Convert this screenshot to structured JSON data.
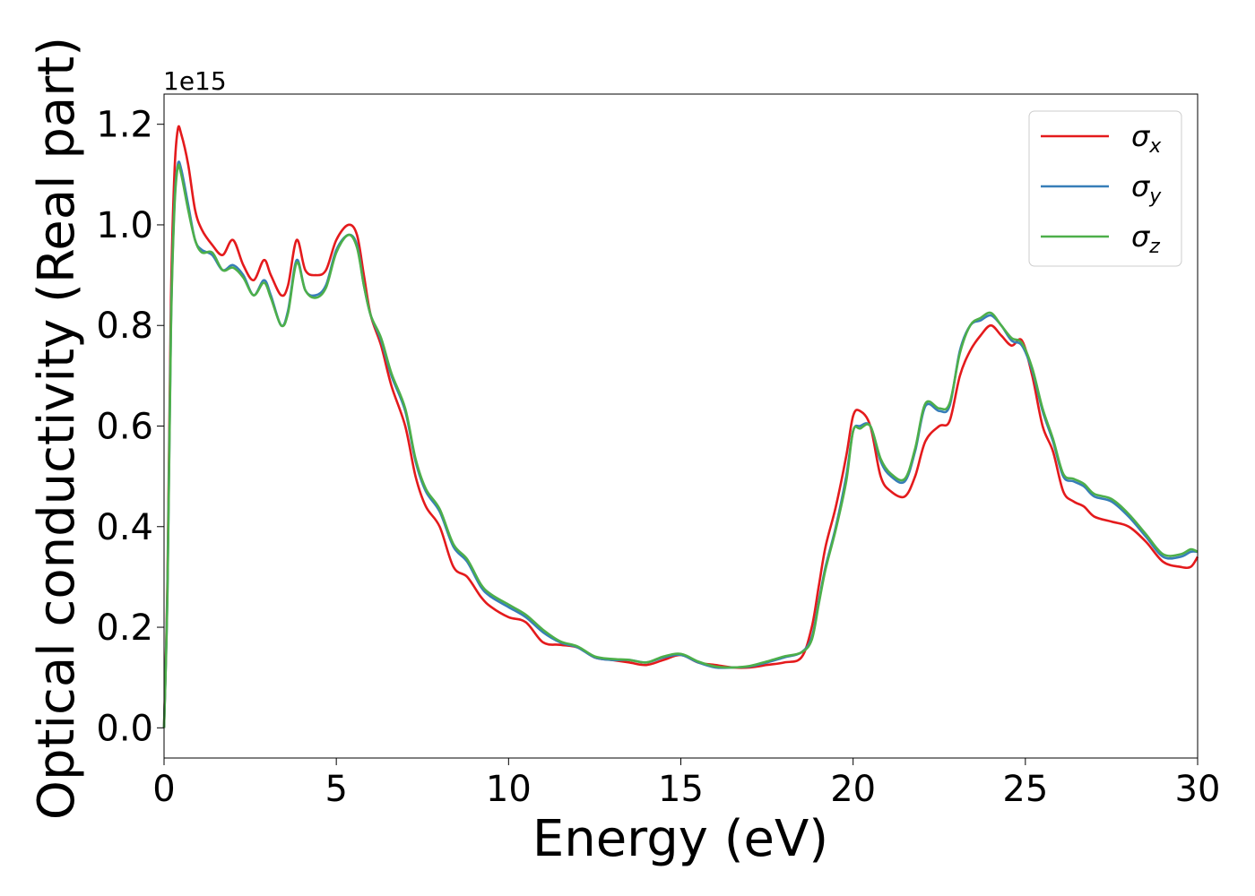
{
  "chart_data": {
    "type": "line",
    "title": "",
    "xlabel": "Energy (eV)",
    "ylabel": "Optical conductivity (Real part)",
    "offset_label": "1e15",
    "xlim": [
      0,
      30
    ],
    "ylim": [
      -0.06,
      1.26
    ],
    "x_ticks": [
      0,
      5,
      10,
      15,
      20,
      25,
      30
    ],
    "x_tick_labels": [
      "0",
      "5",
      "10",
      "15",
      "20",
      "25",
      "30"
    ],
    "y_ticks": [
      0.0,
      0.2,
      0.4,
      0.6,
      0.8,
      1.0,
      1.2
    ],
    "y_tick_labels": [
      "0.0",
      "0.2",
      "0.4",
      "0.6",
      "0.8",
      "1.0",
      "1.2"
    ],
    "grid": false,
    "legend_position": "top-right",
    "series": [
      {
        "name": "σ_x",
        "legend_base": "σ",
        "legend_sub": "x",
        "color": "#e41a1c",
        "x": [
          0,
          0.1,
          0.2,
          0.3,
          0.4,
          0.5,
          0.7,
          0.9,
          1.1,
          1.4,
          1.7,
          2.0,
          2.3,
          2.6,
          2.9,
          3.1,
          3.4,
          3.6,
          3.85,
          4.1,
          4.4,
          4.7,
          5.0,
          5.35,
          5.6,
          5.8,
          6.0,
          6.3,
          6.6,
          7.0,
          7.3,
          7.6,
          8.0,
          8.4,
          8.8,
          9.2,
          9.5,
          10.0,
          10.5,
          11.0,
          11.5,
          12.0,
          12.5,
          13.0,
          13.5,
          14.0,
          14.5,
          15.0,
          15.5,
          16.0,
          16.5,
          17.0,
          17.5,
          18.0,
          18.5,
          18.8,
          19.0,
          19.2,
          19.5,
          19.8,
          20.0,
          20.2,
          20.5,
          20.8,
          21.1,
          21.5,
          21.8,
          22.1,
          22.5,
          22.8,
          23.1,
          23.4,
          23.7,
          24.0,
          24.3,
          24.6,
          24.9,
          25.2,
          25.5,
          25.8,
          26.1,
          26.4,
          26.7,
          27.0,
          27.5,
          28.0,
          28.5,
          29.0,
          29.5,
          29.8,
          30.0
        ],
        "y": [
          0.0,
          0.3,
          0.85,
          1.1,
          1.19,
          1.18,
          1.12,
          1.03,
          0.99,
          0.96,
          0.94,
          0.97,
          0.92,
          0.89,
          0.93,
          0.9,
          0.86,
          0.88,
          0.97,
          0.91,
          0.9,
          0.91,
          0.97,
          1.0,
          0.98,
          0.9,
          0.82,
          0.76,
          0.68,
          0.6,
          0.5,
          0.44,
          0.4,
          0.32,
          0.3,
          0.26,
          0.24,
          0.22,
          0.21,
          0.17,
          0.165,
          0.16,
          0.14,
          0.135,
          0.13,
          0.125,
          0.135,
          0.145,
          0.13,
          0.125,
          0.12,
          0.12,
          0.125,
          0.13,
          0.14,
          0.2,
          0.28,
          0.36,
          0.44,
          0.54,
          0.62,
          0.63,
          0.6,
          0.5,
          0.47,
          0.46,
          0.5,
          0.57,
          0.6,
          0.61,
          0.7,
          0.75,
          0.78,
          0.8,
          0.78,
          0.76,
          0.77,
          0.7,
          0.6,
          0.55,
          0.47,
          0.45,
          0.44,
          0.42,
          0.41,
          0.4,
          0.37,
          0.33,
          0.32,
          0.32,
          0.34
        ]
      },
      {
        "name": "σ_y",
        "legend_base": "σ",
        "legend_sub": "y",
        "color": "#377eb8",
        "x": [
          0,
          0.1,
          0.2,
          0.3,
          0.4,
          0.5,
          0.7,
          0.9,
          1.1,
          1.4,
          1.7,
          2.0,
          2.3,
          2.6,
          2.9,
          3.1,
          3.4,
          3.6,
          3.85,
          4.1,
          4.4,
          4.7,
          5.0,
          5.35,
          5.6,
          5.8,
          6.0,
          6.3,
          6.6,
          7.0,
          7.3,
          7.6,
          8.0,
          8.4,
          8.8,
          9.2,
          9.5,
          10.0,
          10.5,
          11.0,
          11.5,
          12.0,
          12.5,
          13.0,
          13.5,
          14.0,
          14.5,
          15.0,
          15.5,
          16.0,
          16.5,
          17.0,
          17.5,
          18.0,
          18.5,
          18.8,
          19.0,
          19.2,
          19.5,
          19.8,
          20.0,
          20.2,
          20.5,
          20.8,
          21.1,
          21.5,
          21.8,
          22.1,
          22.5,
          22.8,
          23.1,
          23.4,
          23.7,
          24.0,
          24.3,
          24.6,
          24.9,
          25.2,
          25.5,
          25.8,
          26.1,
          26.4,
          26.7,
          27.0,
          27.5,
          28.0,
          28.5,
          29.0,
          29.5,
          29.8,
          30.0
        ],
        "y": [
          0.0,
          0.28,
          0.8,
          1.04,
          1.12,
          1.11,
          1.04,
          0.97,
          0.95,
          0.94,
          0.91,
          0.92,
          0.9,
          0.86,
          0.89,
          0.86,
          0.8,
          0.83,
          0.93,
          0.87,
          0.86,
          0.88,
          0.95,
          0.98,
          0.96,
          0.88,
          0.82,
          0.77,
          0.7,
          0.63,
          0.53,
          0.47,
          0.43,
          0.36,
          0.33,
          0.28,
          0.26,
          0.24,
          0.22,
          0.19,
          0.17,
          0.16,
          0.14,
          0.135,
          0.135,
          0.13,
          0.14,
          0.145,
          0.13,
          0.12,
          0.12,
          0.122,
          0.13,
          0.14,
          0.15,
          0.18,
          0.25,
          0.32,
          0.4,
          0.5,
          0.59,
          0.6,
          0.6,
          0.53,
          0.5,
          0.49,
          0.55,
          0.64,
          0.63,
          0.64,
          0.75,
          0.8,
          0.81,
          0.82,
          0.8,
          0.77,
          0.76,
          0.71,
          0.63,
          0.57,
          0.5,
          0.49,
          0.48,
          0.46,
          0.45,
          0.42,
          0.38,
          0.34,
          0.34,
          0.35,
          0.35
        ]
      },
      {
        "name": "σ_z",
        "legend_base": "σ",
        "legend_sub": "z",
        "color": "#4daf4a",
        "x": [
          0,
          0.1,
          0.2,
          0.3,
          0.4,
          0.5,
          0.7,
          0.9,
          1.1,
          1.4,
          1.7,
          2.0,
          2.3,
          2.6,
          2.9,
          3.1,
          3.4,
          3.6,
          3.85,
          4.1,
          4.4,
          4.7,
          5.0,
          5.35,
          5.6,
          5.8,
          6.0,
          6.3,
          6.6,
          7.0,
          7.3,
          7.6,
          8.0,
          8.4,
          8.8,
          9.2,
          9.5,
          10.0,
          10.5,
          11.0,
          11.5,
          12.0,
          12.5,
          13.0,
          13.5,
          14.0,
          14.5,
          15.0,
          15.5,
          16.0,
          16.5,
          17.0,
          17.5,
          18.0,
          18.5,
          18.8,
          19.0,
          19.2,
          19.5,
          19.8,
          20.0,
          20.2,
          20.5,
          20.8,
          21.1,
          21.5,
          21.8,
          22.1,
          22.5,
          22.8,
          23.1,
          23.4,
          23.7,
          24.0,
          24.3,
          24.6,
          24.9,
          25.2,
          25.5,
          25.8,
          26.1,
          26.4,
          26.7,
          27.0,
          27.5,
          28.0,
          28.5,
          29.0,
          29.5,
          29.8,
          30.0
        ],
        "y": [
          0.0,
          0.27,
          0.79,
          1.03,
          1.115,
          1.1,
          1.03,
          0.97,
          0.945,
          0.945,
          0.91,
          0.915,
          0.895,
          0.86,
          0.885,
          0.855,
          0.8,
          0.825,
          0.925,
          0.87,
          0.855,
          0.875,
          0.945,
          0.98,
          0.955,
          0.88,
          0.82,
          0.775,
          0.705,
          0.635,
          0.535,
          0.475,
          0.435,
          0.365,
          0.335,
          0.285,
          0.265,
          0.245,
          0.225,
          0.195,
          0.172,
          0.162,
          0.142,
          0.137,
          0.135,
          0.13,
          0.142,
          0.147,
          0.132,
          0.122,
          0.12,
          0.123,
          0.132,
          0.142,
          0.15,
          0.175,
          0.245,
          0.315,
          0.395,
          0.49,
          0.59,
          0.595,
          0.6,
          0.535,
          0.505,
          0.495,
          0.555,
          0.645,
          0.635,
          0.645,
          0.745,
          0.8,
          0.815,
          0.825,
          0.8,
          0.775,
          0.765,
          0.715,
          0.635,
          0.575,
          0.505,
          0.495,
          0.485,
          0.465,
          0.455,
          0.425,
          0.385,
          0.345,
          0.345,
          0.355,
          0.35
        ]
      }
    ]
  }
}
